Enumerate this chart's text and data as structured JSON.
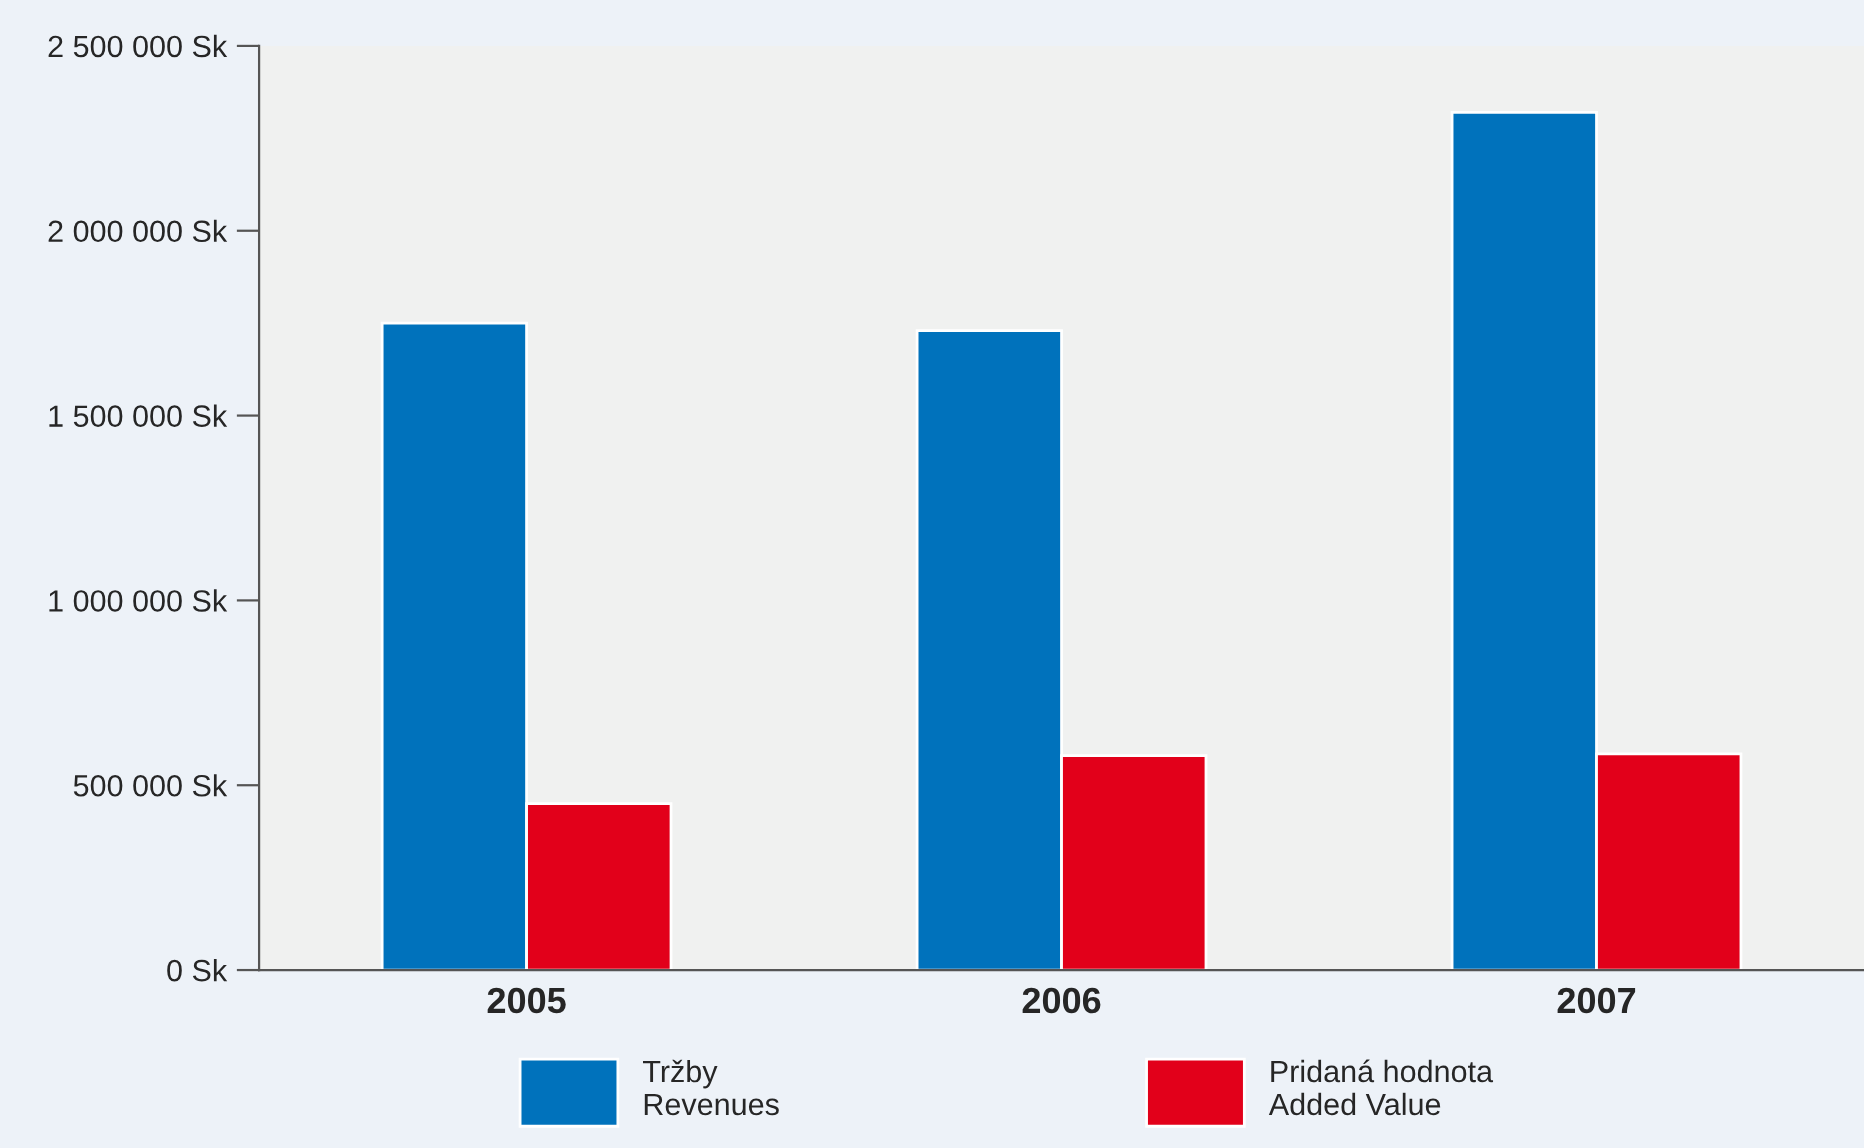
{
  "chart_data": {
    "type": "bar",
    "categories": [
      "2005",
      "2006",
      "2007"
    ],
    "series": [
      {
        "name": "Tržby\nRevenues",
        "color": "#0072bc",
        "values": [
          1750000,
          1730000,
          2320000
        ]
      },
      {
        "name": "Pridaná hodnota\nAdded Value",
        "color": "#e2001a",
        "values": [
          450000,
          580000,
          585000
        ]
      }
    ],
    "ylim": [
      0,
      2500000
    ],
    "yticks": [
      {
        "value": 0,
        "label": "0 Sk"
      },
      {
        "value": 500000,
        "label": "500 000 Sk"
      },
      {
        "value": 1000000,
        "label": "1 000 000 Sk"
      },
      {
        "value": 1500000,
        "label": "1 500 000 Sk"
      },
      {
        "value": 2000000,
        "label": "2 000 000 Sk"
      },
      {
        "value": 2500000,
        "label": "2 500 000 Sk"
      }
    ],
    "grid": false,
    "legend": "bottom"
  }
}
